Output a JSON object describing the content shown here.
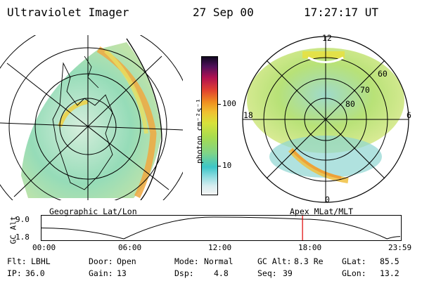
{
  "header": {
    "instrument": "Ultraviolet Imager",
    "date": "27 Sep 00",
    "time": "17:27:17 UT"
  },
  "colorbar": {
    "unit_label": "photon cm⁻²s⁻¹",
    "tick_labels": [
      "100",
      "10"
    ]
  },
  "polar_plot": {
    "mlt_labels": [
      "12",
      "18",
      "6",
      "0"
    ],
    "lat_labels": [
      "60",
      "70",
      "80"
    ]
  },
  "projections": {
    "left": "Geographic Lat/Lon",
    "right": "Apex MLat/MLT"
  },
  "altitude_plot": {
    "axis_label": "GC Alt",
    "y_ticks": [
      "9.0",
      "1.8"
    ],
    "x_ticks": [
      "00:00",
      "06:00",
      "12:00",
      "18:00",
      "23:59"
    ]
  },
  "chart_data": {
    "type": "line",
    "series": [
      {
        "values": [
          [
            0,
            5.4
          ],
          [
            5.5,
            1.8
          ],
          [
            11.5,
            9.0
          ],
          [
            17.5,
            8.3
          ],
          [
            23.1,
            1.8
          ],
          [
            23.98,
            2.6
          ]
        ]
      }
    ],
    "x": "hours UT",
    "xlim": [
      0,
      23.98
    ],
    "ylim": [
      1.8,
      9.0
    ],
    "marker_time": 17.45,
    "marker_color": "#e00000"
  },
  "params": {
    "flt_label": "Flt:",
    "flt_value": "LBHL",
    "ip_label": "IP:",
    "ip_value": "36.0",
    "door_label": "Door:",
    "door_value": "Open",
    "gain_label": "Gain:",
    "gain_value": "13",
    "mode_label": "Mode:",
    "mode_value": "Normal",
    "dsp_label": "Dsp:",
    "dsp_value": "4.8",
    "gcalt_label": "GC Alt:",
    "gcalt_value": "8.3 Re",
    "seq_label": "Seq:",
    "seq_value": "39",
    "glat_label": "GLat:",
    "glat_value": "85.5",
    "glon_label": "GLon:",
    "glon_value": "13.2"
  }
}
